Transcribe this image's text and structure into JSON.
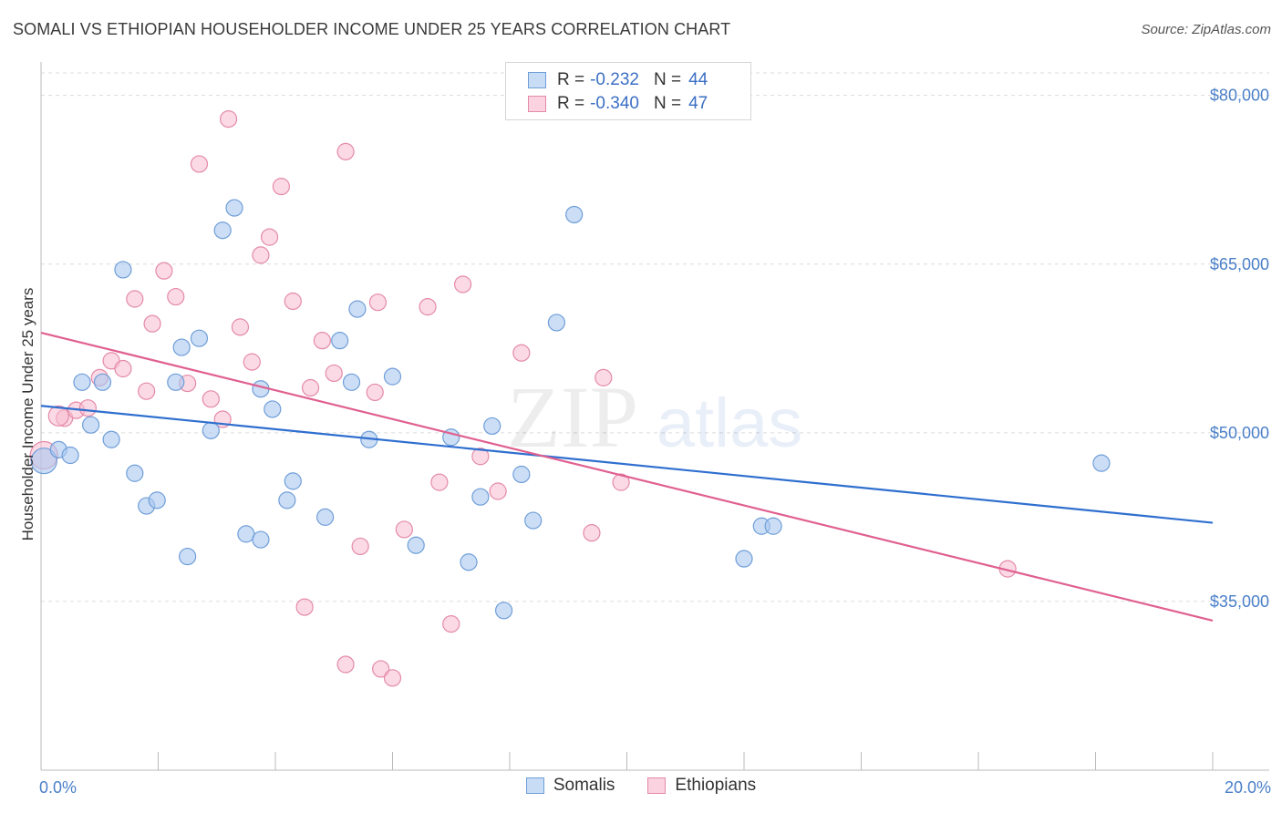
{
  "title": "SOMALI VS ETHIOPIAN HOUSEHOLDER INCOME UNDER 25 YEARS CORRELATION CHART",
  "source": "Source: ZipAtlas.com",
  "watermark": {
    "zip": "ZIP",
    "atlas": "atlas"
  },
  "colors": {
    "somali_fill": "#aac8f0",
    "somali_edge": "#6f9ed8",
    "somali_line": "#2f6fcf",
    "ethiopian_fill": "#f8bcd0",
    "ethiopian_edge": "#e48aa8",
    "ethiopian_line": "#e0608f",
    "grid": "#dcdcdc",
    "tick_label": "#4a7fc8"
  },
  "legend": {
    "rows": [
      {
        "r_label": "R =",
        "r_value": "-0.232",
        "n_label": "N =",
        "n_value": "44"
      },
      {
        "r_label": "R =",
        "r_value": "-0.340",
        "n_label": "N =",
        "n_value": "47"
      }
    ]
  },
  "bottom_legend": [
    "Somalis",
    "Ethiopians"
  ],
  "chart_data": {
    "type": "scatter",
    "title": "SOMALI VS ETHIOPIAN HOUSEHOLDER INCOME UNDER 25 YEARS CORRELATION CHART",
    "xlabel": "",
    "ylabel": "Householder Income Under 25 years",
    "xlim": [
      0,
      20
    ],
    "ylim": [
      20000,
      82000
    ],
    "x_tick_labels": [
      "0.0%",
      "20.0%"
    ],
    "y_ticks": [
      35000,
      50000,
      65000,
      80000
    ],
    "y_tick_labels": [
      "$35,000",
      "$50,000",
      "$65,000",
      "$80,000"
    ],
    "grid": true,
    "legend_position": "top-center",
    "series": [
      {
        "name": "Somalis",
        "trend": {
          "x0": 0,
          "y0": 52400,
          "x1": 20,
          "y1": 42000
        },
        "points": [
          [
            0.05,
            47500
          ],
          [
            0.3,
            48500
          ],
          [
            0.5,
            48000
          ],
          [
            0.7,
            54500
          ],
          [
            0.85,
            50700
          ],
          [
            1.05,
            54500
          ],
          [
            1.2,
            49400
          ],
          [
            1.4,
            64500
          ],
          [
            1.6,
            46400
          ],
          [
            1.8,
            43500
          ],
          [
            1.98,
            44000
          ],
          [
            2.3,
            54500
          ],
          [
            2.4,
            57600
          ],
          [
            2.5,
            39000
          ],
          [
            2.7,
            58400
          ],
          [
            2.9,
            50200
          ],
          [
            3.1,
            68000
          ],
          [
            3.3,
            70000
          ],
          [
            3.5,
            41000
          ],
          [
            3.75,
            40500
          ],
          [
            3.75,
            53900
          ],
          [
            3.95,
            52100
          ],
          [
            4.2,
            44000
          ],
          [
            4.3,
            45700
          ],
          [
            4.85,
            42500
          ],
          [
            5.1,
            58200
          ],
          [
            5.3,
            54500
          ],
          [
            5.4,
            61000
          ],
          [
            5.6,
            49400
          ],
          [
            6.0,
            55000
          ],
          [
            6.4,
            40000
          ],
          [
            7.0,
            49600
          ],
          [
            7.3,
            38500
          ],
          [
            7.5,
            44300
          ],
          [
            7.7,
            50600
          ],
          [
            7.9,
            34200
          ],
          [
            8.2,
            46300
          ],
          [
            8.4,
            42200
          ],
          [
            8.8,
            59800
          ],
          [
            9.1,
            69400
          ],
          [
            12.0,
            38800
          ],
          [
            12.3,
            41700
          ],
          [
            12.5,
            41700
          ],
          [
            18.1,
            47300
          ]
        ]
      },
      {
        "name": "Ethiopians",
        "trend": {
          "x0": 0,
          "y0": 58900,
          "x1": 20,
          "y1": 33300
        },
        "points": [
          [
            0.05,
            48000
          ],
          [
            0.4,
            51300
          ],
          [
            0.6,
            52000
          ],
          [
            0.8,
            52200
          ],
          [
            1.0,
            54900
          ],
          [
            1.2,
            56400
          ],
          [
            1.4,
            55700
          ],
          [
            1.6,
            61900
          ],
          [
            1.8,
            53700
          ],
          [
            1.9,
            59700
          ],
          [
            2.1,
            64400
          ],
          [
            2.3,
            62100
          ],
          [
            2.5,
            54400
          ],
          [
            2.7,
            73900
          ],
          [
            2.9,
            53000
          ],
          [
            3.1,
            51200
          ],
          [
            3.2,
            77900
          ],
          [
            3.4,
            59400
          ],
          [
            3.6,
            56300
          ],
          [
            3.75,
            65800
          ],
          [
            3.9,
            67400
          ],
          [
            4.1,
            71900
          ],
          [
            4.3,
            61700
          ],
          [
            4.5,
            34500
          ],
          [
            4.6,
            54000
          ],
          [
            4.8,
            58200
          ],
          [
            5.0,
            55300
          ],
          [
            5.2,
            75000
          ],
          [
            5.2,
            29400
          ],
          [
            5.45,
            39900
          ],
          [
            5.7,
            53600
          ],
          [
            5.75,
            61600
          ],
          [
            5.8,
            29000
          ],
          [
            6.0,
            28200
          ],
          [
            6.2,
            41400
          ],
          [
            6.6,
            61200
          ],
          [
            6.8,
            45600
          ],
          [
            7.0,
            33000
          ],
          [
            7.2,
            63200
          ],
          [
            7.5,
            47900
          ],
          [
            7.8,
            44800
          ],
          [
            8.2,
            57100
          ],
          [
            9.4,
            41100
          ],
          [
            9.6,
            54900
          ],
          [
            9.9,
            45600
          ],
          [
            16.5,
            37900
          ],
          [
            0.3,
            51500
          ]
        ]
      }
    ]
  }
}
